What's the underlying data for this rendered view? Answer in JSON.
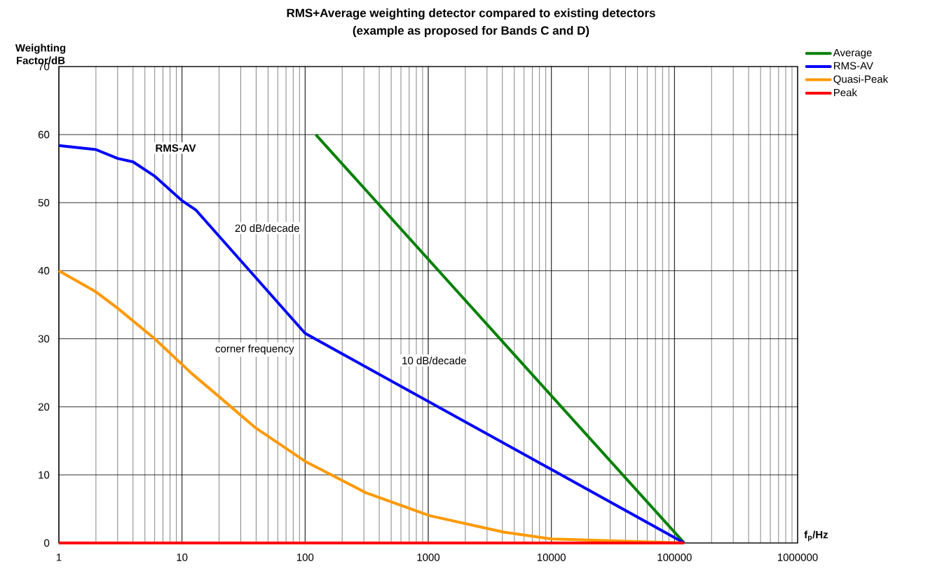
{
  "chart_data": {
    "type": "line",
    "title": "RMS+Average weighting detector compared to existing detectors",
    "subtitle": "(example as proposed for Bands C and D)",
    "xlabel": "f$_{p}$/Hz",
    "ylabel": "Weighting Factor/dB",
    "log": "x",
    "xlim": [
      1,
      1000000
    ],
    "xticks": [
      1,
      10,
      100,
      1000,
      10000,
      100000,
      1000000
    ],
    "ylim": [
      0,
      70
    ],
    "yticks": [
      0,
      10,
      20,
      30,
      40,
      50,
      60,
      70
    ],
    "grid": true,
    "legend": "top right",
    "marker": "none",
    "line_style": "solid",
    "series": [
      {
        "name": "Average",
        "color": "#008000",
        "x": [
          122,
          120000
        ],
        "values": [
          60,
          0
        ]
      },
      {
        "name": "RMS-AV",
        "color": "#0000ff",
        "x": [
          1,
          2,
          3,
          4,
          6,
          10,
          13,
          100,
          1000,
          10000,
          120000
        ],
        "values": [
          58.4,
          57.8,
          56.5,
          56,
          53.9,
          50.3,
          48.9,
          30.8,
          20.8,
          10.8,
          0
        ]
      },
      {
        "name": "Quasi-Peak",
        "color": "#ff9900",
        "x": [
          1,
          2,
          3,
          6,
          12,
          20,
          39,
          100,
          310,
          1030,
          4100,
          10000,
          120000
        ],
        "values": [
          40,
          36.9,
          34.5,
          30,
          24.9,
          21.5,
          17,
          12,
          7.4,
          4,
          1.6,
          0.6,
          0
        ]
      },
      {
        "name": "Peak",
        "color": "#ff0000",
        "x": [
          1,
          120000
        ],
        "values": [
          0,
          0
        ]
      }
    ],
    "annotations": [
      "RMS-AV",
      "20 dB/decade",
      "corner frequency",
      "10 dB/decade"
    ]
  }
}
